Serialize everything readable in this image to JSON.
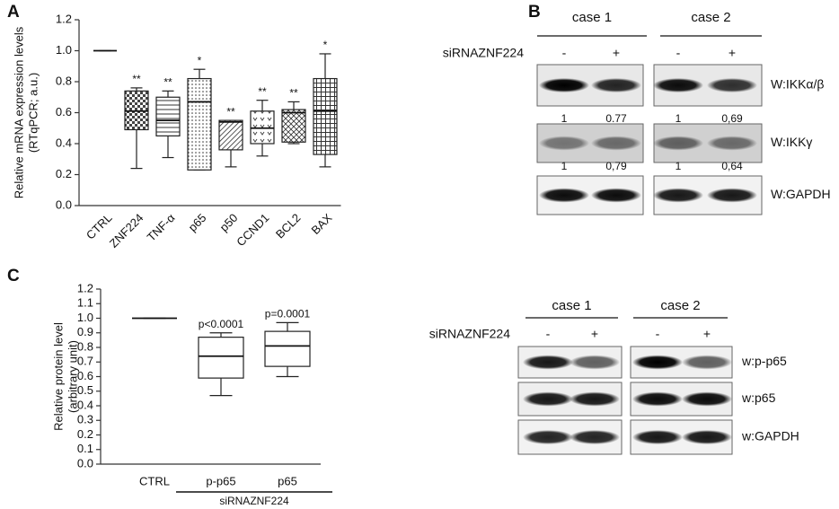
{
  "panels": [
    "A",
    "B",
    "C"
  ],
  "chart_data": [
    {
      "type": "box",
      "ylabel": [
        "Relative mRNA expression levels",
        "(RTqPCR; a.u.)"
      ],
      "categories": [
        "CTRL",
        "ZNF224",
        "TNF-α",
        "p65",
        "p50",
        "CCND1",
        "BCL2",
        "BAX"
      ],
      "boxes": [
        {
          "min": 1,
          "q1": 1,
          "median": 1,
          "q3": 1,
          "max": 1
        },
        {
          "min": 0.24,
          "q1": 0.49,
          "median": 0.61,
          "q3": 0.74,
          "max": 0.76
        },
        {
          "min": 0.31,
          "q1": 0.45,
          "median": 0.55,
          "q3": 0.7,
          "max": 0.74
        },
        {
          "min": 0.23,
          "q1": 0.23,
          "median": 0.67,
          "q3": 0.82,
          "max": 0.88
        },
        {
          "min": 0.25,
          "q1": 0.36,
          "median": 0.54,
          "q3": 0.55,
          "max": 0.55
        },
        {
          "min": 0.32,
          "q1": 0.4,
          "median": 0.5,
          "q3": 0.61,
          "max": 0.68
        },
        {
          "min": 0.4,
          "q1": 0.41,
          "median": 0.6,
          "q3": 0.62,
          "max": 0.67
        },
        {
          "min": 0.25,
          "q1": 0.33,
          "median": 0.61,
          "q3": 0.82,
          "max": 0.98
        }
      ],
      "annotations": [
        null,
        "**",
        "**",
        "*",
        "**",
        "**",
        "**",
        "*"
      ],
      "ylim": [
        0,
        1.2
      ],
      "yticks": [
        {
          "value": 0,
          "label": "0.0"
        },
        0.2,
        0.4,
        0.6,
        0.8,
        {
          "value": 1,
          "label": "1.0"
        },
        1.2
      ]
    },
    {
      "type": "box",
      "ylabel": [
        "Relative protein level",
        "(arbitrary unit)"
      ],
      "categories": [
        "CTRL",
        "p-p65",
        "p65"
      ],
      "boxes": [
        {
          "min": 1,
          "q1": 1,
          "median": 1,
          "q3": 1,
          "max": 1
        },
        {
          "min": 0.47,
          "q1": 0.59,
          "median": 0.74,
          "q3": 0.87,
          "max": 0.9
        },
        {
          "min": 0.6,
          "q1": 0.67,
          "median": 0.81,
          "q3": 0.91,
          "max": 0.97
        }
      ],
      "annotations": [
        null,
        "p<0.0001",
        "p=0.0001"
      ],
      "group_label": "siRNAZNF224",
      "ylim": [
        0,
        1.2
      ],
      "yticks": [
        {
          "value": 0,
          "label": "0.0"
        },
        0.1,
        0.2,
        0.3,
        0.4,
        0.5,
        0.6,
        0.7,
        0.8,
        0.9,
        {
          "value": 1,
          "label": "1.0"
        },
        1.1,
        1.2
      ]
    }
  ],
  "blots": [
    {
      "cases": [
        "case 1",
        "case 2"
      ],
      "treatment": "siRNAZNF224",
      "lanes": [
        "-",
        "+",
        "-",
        "+"
      ],
      "rows": [
        {
          "label": "W:IKKα/β",
          "quant": [
            "1",
            "0.77",
            "1",
            "0,69"
          ]
        },
        {
          "label": "W:IKKγ",
          "quant": [
            "1",
            "0,79",
            "1",
            "0,64"
          ]
        },
        {
          "label": "W:GAPDH"
        }
      ]
    },
    {
      "cases": [
        "case 1",
        "case 2"
      ],
      "treatment": "siRNAZNF224",
      "lanes": [
        "-",
        "+",
        "-",
        "+"
      ],
      "rows": [
        {
          "label": "w:p-p65"
        },
        {
          "label": "w:p65"
        },
        {
          "label": "w:GAPDH"
        }
      ]
    }
  ]
}
